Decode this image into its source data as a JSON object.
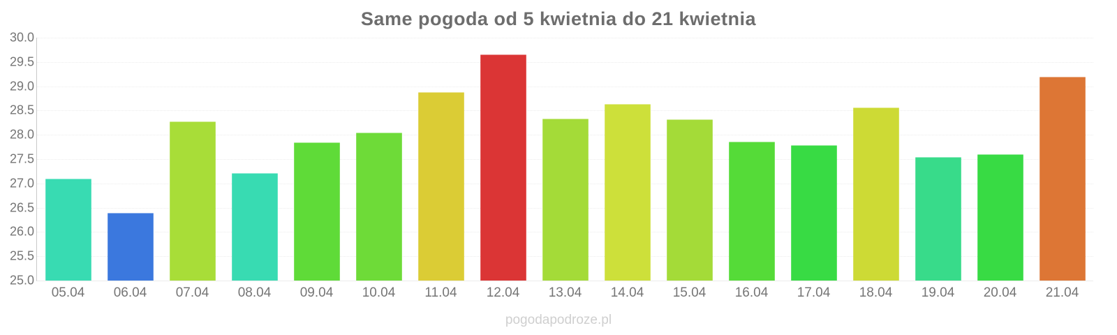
{
  "title": "Same pogoda od 5 kwietnia do 21 kwietnia",
  "watermark": "pogodapodroze.pl",
  "chart_data": {
    "type": "bar",
    "title": "Same pogoda od 5 kwietnia do 21 kwietnia",
    "xlabel": "",
    "ylabel": "",
    "ylim": [
      25.0,
      30.0
    ],
    "y_tick_step": 0.5,
    "y_ticks": [
      "25.0",
      "25.5",
      "26.0",
      "26.5",
      "27.0",
      "27.5",
      "28.0",
      "28.5",
      "29.0",
      "29.5",
      "30.0"
    ],
    "grid": "horizontal-dotted",
    "legend": "none",
    "categories": [
      "05.04",
      "06.04",
      "07.04",
      "08.04",
      "09.04",
      "10.04",
      "11.04",
      "12.04",
      "13.04",
      "14.04",
      "15.04",
      "16.04",
      "17.04",
      "18.04",
      "19.04",
      "20.04",
      "21.04"
    ],
    "values": [
      27.1,
      26.4,
      28.27,
      27.22,
      27.85,
      28.04,
      28.88,
      29.65,
      28.34,
      28.63,
      28.32,
      27.86,
      27.79,
      28.57,
      27.54,
      27.6,
      29.2
    ],
    "bar_colors": [
      "#38dbb2",
      "#3b78de",
      "#a8dd38",
      "#38dbb2",
      "#5fdb38",
      "#6edb38",
      "#dbcc35",
      "#db3535",
      "#a4db38",
      "#cde03a",
      "#a4db38",
      "#55db38",
      "#38db44",
      "#cdda35",
      "#38db8a",
      "#38db44",
      "#dd7635"
    ]
  }
}
